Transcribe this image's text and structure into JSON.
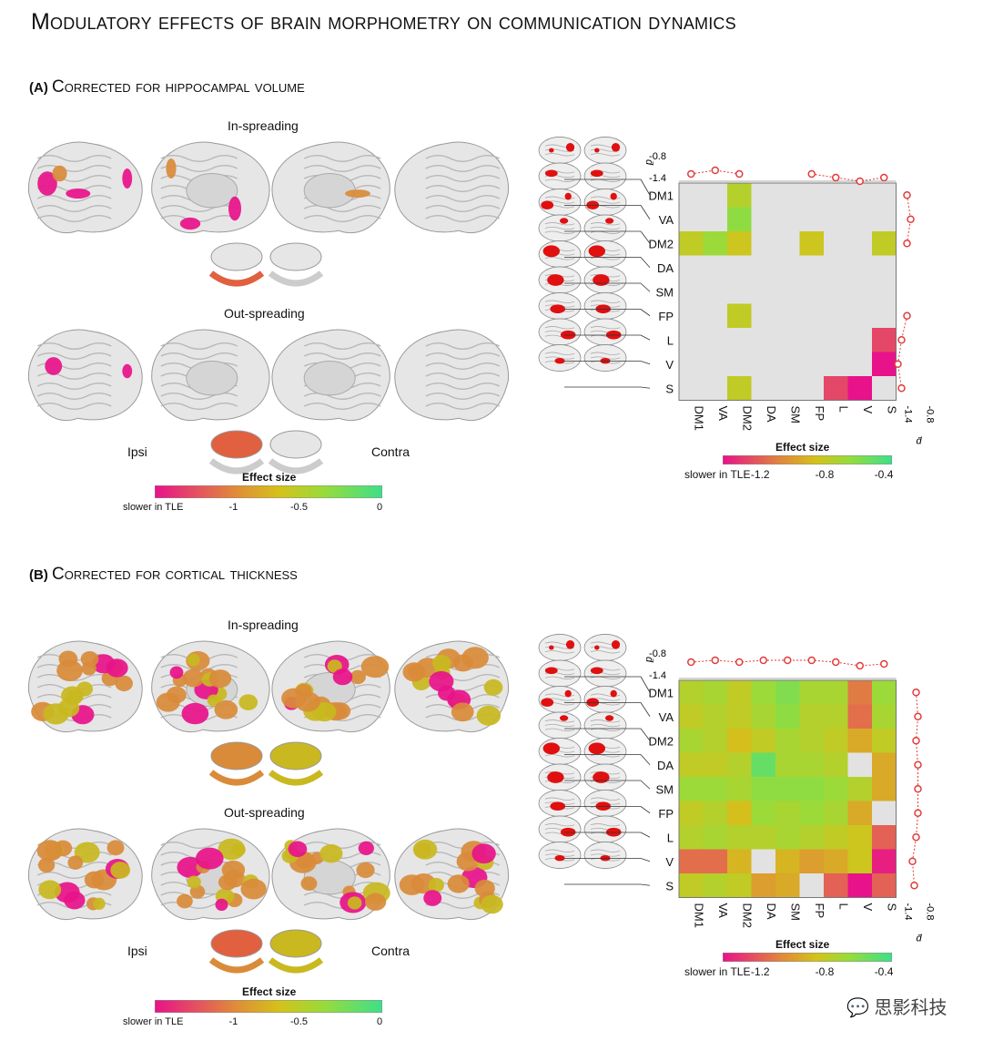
{
  "title": "Modulatory effects of brain morphometry on communication dynamics",
  "panels": [
    {
      "id": "A",
      "letter": "(A)",
      "heading": "Corrected for hippocampal volume",
      "in_label": "In-spreading",
      "out_label": "Out-spreading",
      "ipsi": "Ipsi",
      "contra": "Contra",
      "surface_colorbar": {
        "title": "Effect size",
        "left_label": "slower in TLE",
        "ticks": [
          "-1",
          "-0.5",
          "0"
        ]
      },
      "matrix_colorbar": {
        "title": "Effect size",
        "left_label": "slower in TLE",
        "ticks": [
          "-1.2",
          "-0.8",
          "-0.4"
        ]
      }
    },
    {
      "id": "B",
      "letter": "(B)",
      "heading": "Corrected for cortical thickness",
      "in_label": "In-spreading",
      "out_label": "Out-spreading",
      "ipsi": "Ipsi",
      "contra": "Contra",
      "surface_colorbar": {
        "title": "Effect size",
        "left_label": "slower in TLE",
        "ticks": [
          "-1",
          "-0.5",
          "0"
        ]
      },
      "matrix_colorbar": {
        "title": "Effect size",
        "left_label": "slower in TLE",
        "ticks": [
          "-1.2",
          "-0.8",
          "-0.4"
        ]
      }
    }
  ],
  "networks": [
    "DM1",
    "VA",
    "DM2",
    "DA",
    "SM",
    "FP",
    "L",
    "V",
    "S"
  ],
  "marginal_axis": {
    "symbol": "d̄",
    "ticks": [
      "-0.8",
      "-1.4"
    ]
  },
  "colors": {
    "magenta": "#e8128a",
    "orange": "#e08a3a",
    "yellow": "#d4c21a",
    "green": "#3ddf8a",
    "gray": "#e2e2e2",
    "marker": "#e23a3a"
  },
  "chart_data": [
    {
      "type": "heatmap",
      "panel": "A",
      "rows": [
        "DM1",
        "VA",
        "DM2",
        "DA",
        "SM",
        "FP",
        "L",
        "V",
        "S"
      ],
      "cols": [
        "DM1",
        "VA",
        "DM2",
        "DA",
        "SM",
        "FP",
        "L",
        "V",
        "S"
      ],
      "title": "Effect size",
      "values": [
        [
          null,
          null,
          -0.75,
          null,
          null,
          null,
          null,
          null,
          null
        ],
        [
          null,
          null,
          -0.6,
          null,
          null,
          null,
          null,
          null,
          null
        ],
        [
          -0.8,
          -0.65,
          -0.85,
          null,
          null,
          -0.85,
          null,
          null,
          -0.8
        ],
        [
          null,
          null,
          null,
          null,
          null,
          null,
          null,
          null,
          null
        ],
        [
          null,
          null,
          null,
          null,
          null,
          null,
          null,
          null,
          null
        ],
        [
          null,
          null,
          -0.8,
          null,
          null,
          null,
          null,
          null,
          null
        ],
        [
          null,
          null,
          null,
          null,
          null,
          null,
          null,
          null,
          -1.4
        ],
        [
          null,
          null,
          null,
          null,
          null,
          null,
          null,
          null,
          -1.6
        ],
        [
          null,
          null,
          -0.8,
          null,
          null,
          null,
          -1.4,
          -1.6,
          null
        ]
      ],
      "top_marginal": [
        -1.3,
        -1.2,
        -1.3,
        null,
        null,
        -1.3,
        -1.4,
        -1.5,
        -1.4
      ],
      "right_marginal": [
        -1.3,
        -1.2,
        -1.3,
        null,
        null,
        -1.3,
        -1.45,
        -1.55,
        -1.45
      ],
      "crange": [
        -1.6,
        -0.3
      ]
    },
    {
      "type": "heatmap",
      "panel": "B",
      "rows": [
        "DM1",
        "VA",
        "DM2",
        "DA",
        "SM",
        "FP",
        "L",
        "V",
        "S"
      ],
      "cols": [
        "DM1",
        "VA",
        "DM2",
        "DA",
        "SM",
        "FP",
        "L",
        "V",
        "S"
      ],
      "title": "Effect size",
      "values": [
        [
          -0.75,
          -0.7,
          -0.8,
          -0.65,
          -0.55,
          -0.7,
          -0.7,
          -1.2,
          -0.65
        ],
        [
          -0.8,
          -0.75,
          -0.8,
          -0.7,
          -0.6,
          -0.75,
          -0.75,
          -1.25,
          -0.7
        ],
        [
          -0.7,
          -0.75,
          -0.9,
          -0.8,
          -0.7,
          -0.75,
          -0.8,
          -1.0,
          -0.8
        ],
        [
          -0.8,
          -0.8,
          -0.75,
          -0.45,
          -0.7,
          -0.7,
          -0.75,
          null,
          -1.0
        ],
        [
          -0.65,
          -0.65,
          -0.7,
          -0.6,
          -0.6,
          -0.6,
          -0.65,
          -0.75,
          -1.0
        ],
        [
          -0.8,
          -0.75,
          -0.9,
          -0.65,
          -0.7,
          -0.65,
          -0.7,
          -1.0,
          null
        ],
        [
          -0.75,
          -0.7,
          -0.75,
          -0.75,
          -0.7,
          -0.75,
          -0.8,
          -0.85,
          -1.3
        ],
        [
          -1.25,
          -1.25,
          -0.95,
          null,
          -0.95,
          -1.05,
          -1.0,
          -0.85,
          -1.55
        ],
        [
          -0.8,
          -0.75,
          -0.8,
          -1.05,
          -1.0,
          null,
          -1.3,
          -1.6,
          -1.3
        ]
      ],
      "top_marginal": [
        -1.05,
        -1.0,
        -1.05,
        -1.0,
        -1.0,
        -1.0,
        -1.05,
        -1.15,
        -1.1
      ],
      "right_marginal": [
        -1.05,
        -1.0,
        -1.05,
        -1.0,
        -1.0,
        -1.0,
        -1.05,
        -1.15,
        -1.1
      ],
      "crange": [
        -1.6,
        -0.3
      ]
    }
  ]
}
